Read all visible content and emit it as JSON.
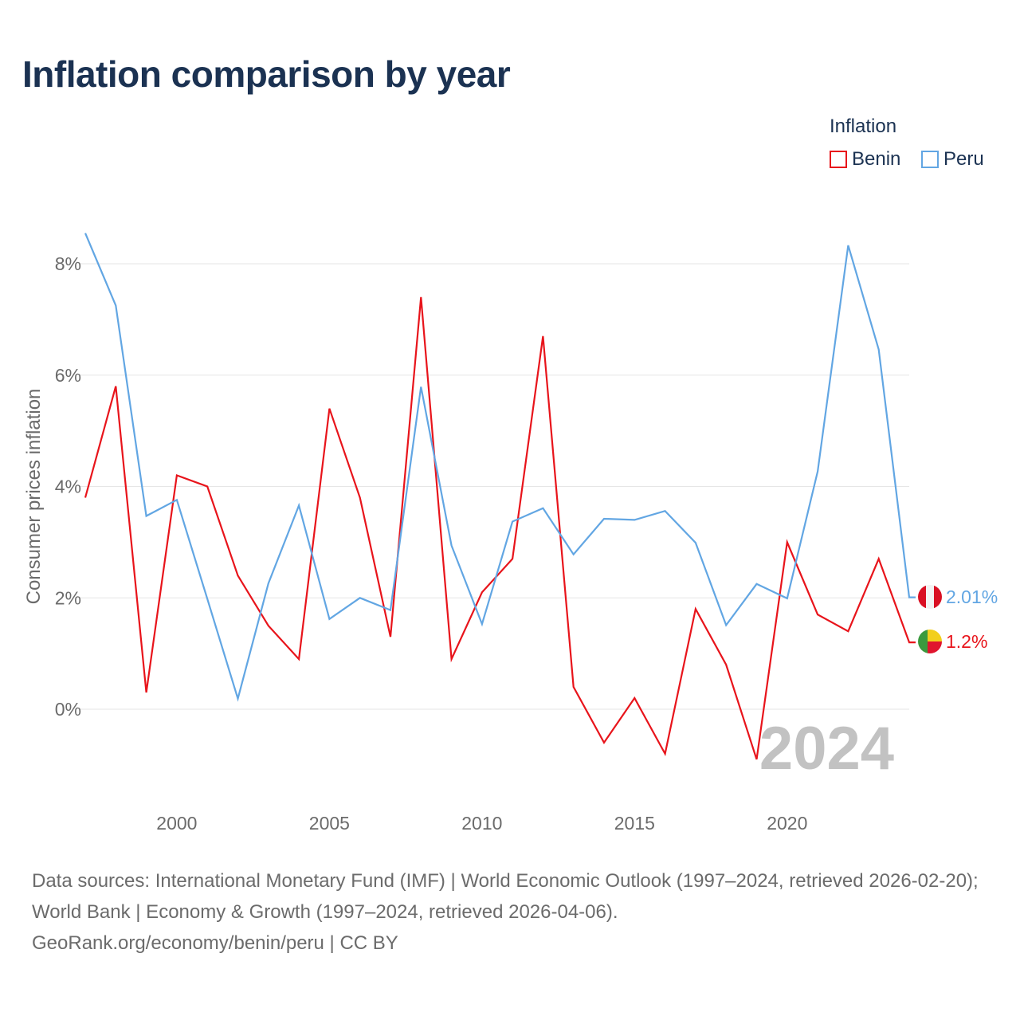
{
  "title": "Inflation comparison by year",
  "legend": {
    "title": "Inflation",
    "items": [
      {
        "label": "Benin",
        "color": "#e8141b"
      },
      {
        "label": "Peru",
        "color": "#62a6e3"
      }
    ]
  },
  "footer": {
    "sources": "Data sources: International Monetary Fund (IMF) | World Economic Outlook (1997–2024, retrieved 2026-02-20); World Bank | Economy & Growth (1997–2024, retrieved 2026-04-06).",
    "credit": "GeoRank.org/economy/benin/peru | CC BY"
  },
  "chart_data": {
    "type": "line",
    "title": "Inflation comparison by year",
    "xlabel": "",
    "ylabel": "Consumer prices inflation",
    "xlim": [
      1997,
      2024
    ],
    "ylim": [
      -1.8,
      8.6
    ],
    "x_ticks": [
      2000,
      2005,
      2010,
      2015,
      2020
    ],
    "y_ticks": [
      0,
      2,
      4,
      6,
      8
    ],
    "y_tick_labels": [
      "0%",
      "2%",
      "4%",
      "6%",
      "8%"
    ],
    "grid": true,
    "legend_position": "top-right",
    "year_watermark": "2024",
    "x": [
      1997,
      1998,
      1999,
      2000,
      2001,
      2002,
      2003,
      2004,
      2005,
      2006,
      2007,
      2008,
      2009,
      2010,
      2011,
      2012,
      2013,
      2014,
      2015,
      2016,
      2017,
      2018,
      2019,
      2020,
      2021,
      2022,
      2023,
      2024
    ],
    "series": [
      {
        "name": "Benin",
        "color": "#e8141b",
        "end_label": "1.2%",
        "values": [
          3.8,
          5.8,
          0.3,
          4.2,
          4.0,
          2.4,
          1.5,
          0.9,
          5.4,
          3.8,
          1.3,
          7.4,
          0.9,
          2.1,
          2.7,
          6.7,
          0.4,
          -0.6,
          0.2,
          -0.8,
          1.8,
          0.8,
          -0.9,
          3.0,
          1.7,
          1.4,
          2.7,
          1.2
        ]
      },
      {
        "name": "Peru",
        "color": "#62a6e3",
        "end_label": "2.01%",
        "values": [
          8.55,
          7.25,
          3.47,
          3.76,
          1.98,
          0.19,
          2.26,
          3.66,
          1.62,
          2.0,
          1.78,
          5.79,
          2.94,
          1.53,
          3.37,
          3.61,
          2.78,
          3.42,
          3.4,
          3.56,
          2.99,
          1.51,
          2.25,
          1.99,
          4.27,
          8.33,
          6.46,
          2.01
        ]
      }
    ]
  }
}
